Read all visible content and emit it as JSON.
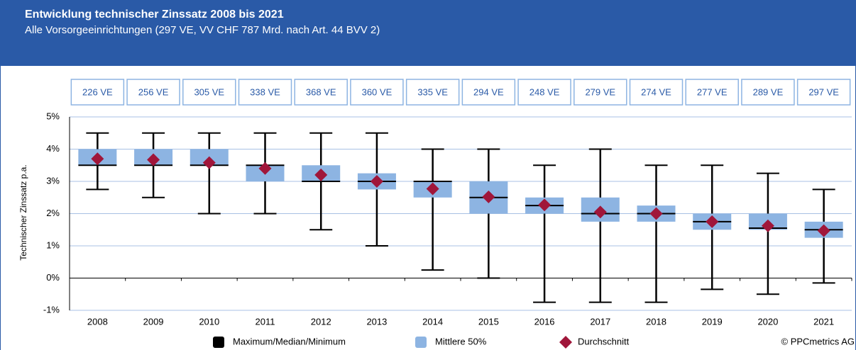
{
  "chart_data": {
    "type": "box",
    "title": "Entwicklung technischer Zinssatz 2008 bis 2021",
    "subtitle": "Alle Vorsorgeeinrichtungen (297 VE, VV CHF 787 Mrd. nach Art. 44 BVV 2)",
    "y_label": "Technischer Zinssatz p.a.",
    "categories": [
      "2008",
      "2009",
      "2010",
      "2011",
      "2012",
      "2013",
      "2014",
      "2015",
      "2016",
      "2017",
      "2018",
      "2019",
      "2020",
      "2021"
    ],
    "counts": [
      "226 VE",
      "256 VE",
      "305 VE",
      "338 VE",
      "368 VE",
      "360 VE",
      "335 VE",
      "294 VE",
      "248 VE",
      "279 VE",
      "274 VE",
      "277 VE",
      "289 VE",
      "297 VE"
    ],
    "max": [
      4.5,
      4.5,
      4.5,
      4.5,
      4.5,
      4.5,
      4.0,
      4.0,
      3.5,
      4.0,
      3.5,
      3.5,
      3.25,
      2.75
    ],
    "q3": [
      4.0,
      4.0,
      4.0,
      3.5,
      3.5,
      3.25,
      3.0,
      3.0,
      2.5,
      2.5,
      2.25,
      2.0,
      2.0,
      1.75
    ],
    "median": [
      3.5,
      3.5,
      3.5,
      3.5,
      3.0,
      3.0,
      3.0,
      2.5,
      2.25,
      2.0,
      2.0,
      1.75,
      1.55,
      1.5
    ],
    "q1": [
      3.5,
      3.5,
      3.5,
      3.0,
      3.0,
      2.75,
      2.5,
      2.0,
      2.0,
      1.75,
      1.75,
      1.5,
      1.5,
      1.25
    ],
    "min": [
      2.75,
      2.5,
      2.0,
      2.0,
      1.5,
      1.0,
      0.25,
      0.0,
      -0.75,
      -0.75,
      -0.75,
      -0.35,
      -0.5,
      -0.15
    ],
    "mean": [
      3.7,
      3.67,
      3.58,
      3.4,
      3.2,
      3.0,
      2.77,
      2.52,
      2.27,
      2.05,
      2.0,
      1.75,
      1.62,
      1.47
    ],
    "legend": [
      {
        "name": "Maximum/Median/Minimum",
        "color": "#000000"
      },
      {
        "name": "Mittlere 50%",
        "color": "#8db4e2"
      },
      {
        "name": "Durchschnitt",
        "color": "#a0163a"
      }
    ],
    "ylim": [
      -1,
      5
    ],
    "yticks": [
      {
        "value": -1,
        "label": "-1%"
      },
      {
        "value": 0,
        "label": "0%"
      },
      {
        "value": 1,
        "label": "1%"
      },
      {
        "value": 2,
        "label": "2%"
      },
      {
        "value": 3,
        "label": "3%"
      },
      {
        "value": 4,
        "label": "4%"
      },
      {
        "value": 5,
        "label": "5%"
      }
    ],
    "grid": true,
    "source": "© PPCmetrics AG"
  }
}
